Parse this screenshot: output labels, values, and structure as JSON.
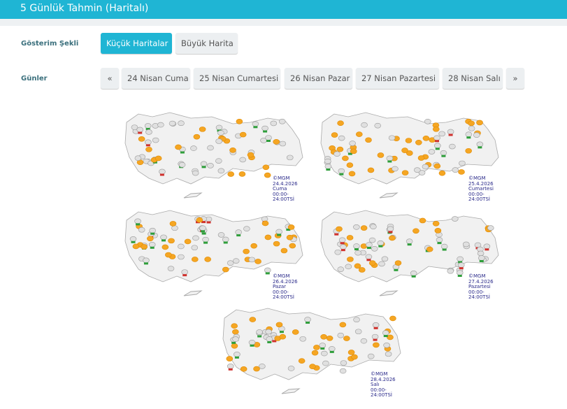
{
  "header": {
    "title": "5 Günlük Tahmin (Haritalı)"
  },
  "display_mode": {
    "label": "Gösterim Şekli",
    "options": [
      "Küçük Haritalar",
      "Büyük Harita"
    ],
    "selected": "Küçük Haritalar"
  },
  "days": {
    "label": "Günler",
    "prev": "«",
    "next": "»",
    "items": [
      "24 Nisan Cuma",
      "25 Nisan Cumartesi",
      "26 Nisan Pazar",
      "27 Nisan Pazartesi",
      "28 Nisan Salı"
    ]
  },
  "maps": [
    {
      "source": "©MGM",
      "date": "24.4.2026",
      "day": "Cuma",
      "range": "00:00-24:00TSİ"
    },
    {
      "source": "©MGM",
      "date": "25.4.2026",
      "day": "Cumartesi",
      "range": "00:00-24:00TSİ"
    },
    {
      "source": "©MGM",
      "date": "26.4.2026",
      "day": "Pazar",
      "range": "00:00-24:00TSİ"
    },
    {
      "source": "©MGM",
      "date": "27.4.2026",
      "day": "Pazartesi",
      "range": "00:00-24:00TSİ"
    },
    {
      "source": "©MGM",
      "date": "28.4.2026",
      "day": "Salı",
      "range": "00:00-24:00TSİ"
    }
  ],
  "colors": {
    "accent": "#1fb5d4",
    "sun": "#f5a623",
    "cloud": "#bdbdbd",
    "rain": "#2e9e3a",
    "storm": "#d0312d",
    "caption": "#2a2a8a"
  }
}
